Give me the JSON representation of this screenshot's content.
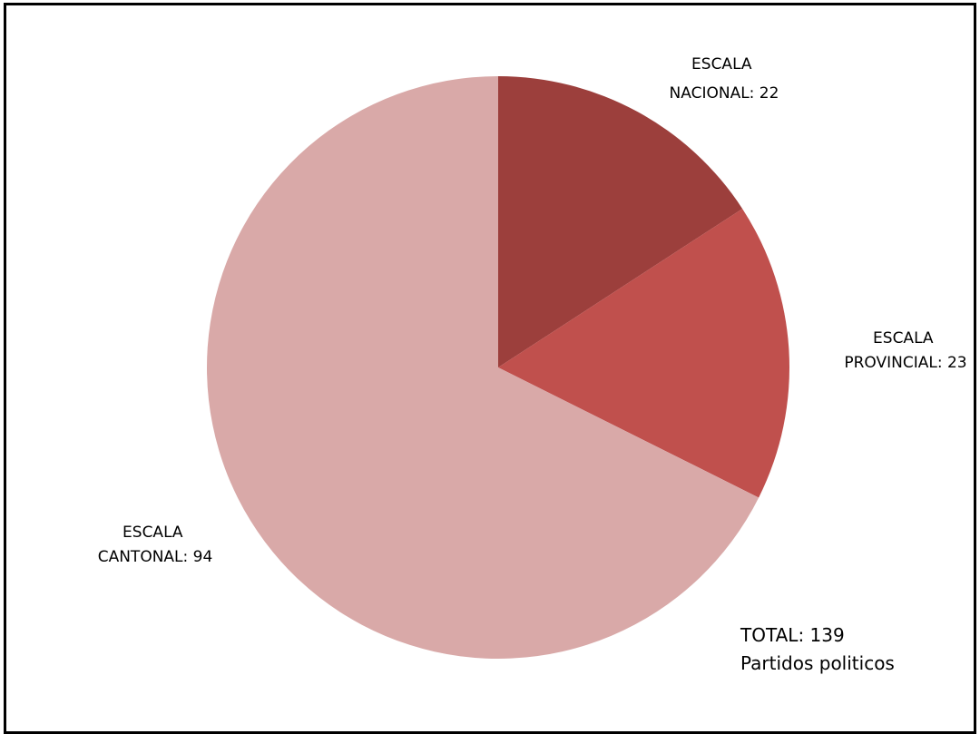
{
  "chart_data": {
    "type": "pie",
    "slices": [
      {
        "label_lines": [
          "ESCALA",
          "NACIONAL: 22"
        ],
        "value": 22,
        "color": "#9c3f3c"
      },
      {
        "label_lines": [
          "ESCALA",
          "PROVINCIAL: 23"
        ],
        "value": 23,
        "color": "#c0504d"
      },
      {
        "label_lines": [
          "ESCALA",
          "CANTONAL: 94"
        ],
        "value": 94,
        "color": "#d9a9a8"
      }
    ],
    "total_lines": [
      "TOTAL: 139",
      "Partidos politicos"
    ]
  }
}
